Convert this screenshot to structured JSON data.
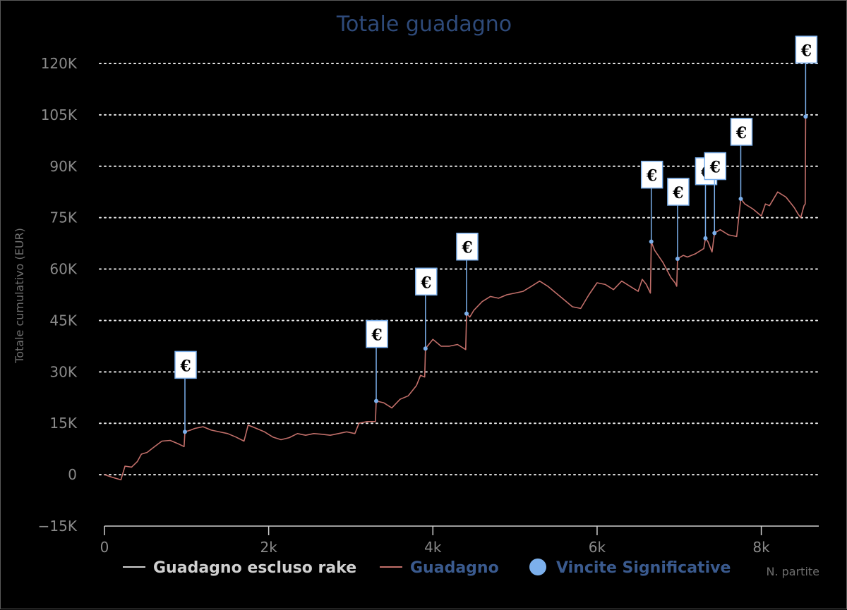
{
  "chart_data": {
    "type": "line",
    "title": "Totale guadagno",
    "xlabel": "N. partite",
    "ylabel": "Totale cumulativo (EUR)",
    "xlim": [
      0,
      8700
    ],
    "ylim": [
      -15000,
      120000
    ],
    "x_ticks": [
      {
        "value": 0,
        "label": "0"
      },
      {
        "value": 2000,
        "label": "2k"
      },
      {
        "value": 4000,
        "label": "4k"
      },
      {
        "value": 6000,
        "label": "6k"
      },
      {
        "value": 8000,
        "label": "8k"
      }
    ],
    "y_ticks": [
      {
        "value": -15000,
        "label": "−15K"
      },
      {
        "value": 0,
        "label": "0"
      },
      {
        "value": 15000,
        "label": "15K"
      },
      {
        "value": 30000,
        "label": "30K"
      },
      {
        "value": 45000,
        "label": "45K"
      },
      {
        "value": 60000,
        "label": "60K"
      },
      {
        "value": 75000,
        "label": "75K"
      },
      {
        "value": 90000,
        "label": "90K"
      },
      {
        "value": 105000,
        "label": "105K"
      },
      {
        "value": 120000,
        "label": "120K"
      }
    ],
    "grid": "horizontal-dotted",
    "legend_position": "bottom",
    "colors": {
      "excl_rake": "#d0d0d0",
      "guadagno": "#c26f6a",
      "vincite": "#7cb0ec",
      "title": "#2e4a7a"
    },
    "series": [
      {
        "name": "Guadagno escluso rake",
        "points": []
      },
      {
        "name": "Guadagno",
        "points": [
          [
            0,
            0
          ],
          [
            100,
            -800
          ],
          [
            200,
            -1500
          ],
          [
            250,
            2500
          ],
          [
            330,
            2200
          ],
          [
            400,
            3800
          ],
          [
            450,
            6000
          ],
          [
            520,
            6500
          ],
          [
            600,
            8000
          ],
          [
            700,
            9800
          ],
          [
            800,
            10000
          ],
          [
            900,
            9000
          ],
          [
            970,
            8200
          ],
          [
            980,
            12500
          ],
          [
            1050,
            13000
          ],
          [
            1100,
            13500
          ],
          [
            1200,
            14000
          ],
          [
            1300,
            13000
          ],
          [
            1400,
            12500
          ],
          [
            1500,
            12000
          ],
          [
            1600,
            11000
          ],
          [
            1700,
            9800
          ],
          [
            1750,
            14500
          ],
          [
            1850,
            13500
          ],
          [
            1950,
            12500
          ],
          [
            2050,
            11000
          ],
          [
            2150,
            10200
          ],
          [
            2250,
            10800
          ],
          [
            2350,
            12000
          ],
          [
            2450,
            11500
          ],
          [
            2550,
            12000
          ],
          [
            2650,
            11800
          ],
          [
            2750,
            11500
          ],
          [
            2850,
            12000
          ],
          [
            2950,
            12500
          ],
          [
            3050,
            12000
          ],
          [
            3100,
            15000
          ],
          [
            3200,
            15500
          ],
          [
            3300,
            15500
          ],
          [
            3310,
            21500
          ],
          [
            3400,
            21000
          ],
          [
            3500,
            19500
          ],
          [
            3600,
            22000
          ],
          [
            3700,
            23000
          ],
          [
            3800,
            26000
          ],
          [
            3850,
            29000
          ],
          [
            3900,
            28500
          ],
          [
            3910,
            36800
          ],
          [
            3950,
            38000
          ],
          [
            4000,
            39500
          ],
          [
            4100,
            37500
          ],
          [
            4200,
            37500
          ],
          [
            4300,
            38000
          ],
          [
            4400,
            36500
          ],
          [
            4410,
            47000
          ],
          [
            4450,
            46000
          ],
          [
            4500,
            48000
          ],
          [
            4600,
            50500
          ],
          [
            4700,
            52000
          ],
          [
            4800,
            51500
          ],
          [
            4900,
            52500
          ],
          [
            5000,
            53000
          ],
          [
            5100,
            53500
          ],
          [
            5200,
            55000
          ],
          [
            5300,
            56500
          ],
          [
            5400,
            55000
          ],
          [
            5500,
            53000
          ],
          [
            5600,
            51000
          ],
          [
            5700,
            49000
          ],
          [
            5800,
            48500
          ],
          [
            5900,
            52500
          ],
          [
            6000,
            56000
          ],
          [
            6100,
            55500
          ],
          [
            6200,
            54000
          ],
          [
            6300,
            56500
          ],
          [
            6400,
            55000
          ],
          [
            6500,
            53500
          ],
          [
            6550,
            57000
          ],
          [
            6600,
            55500
          ],
          [
            6650,
            53000
          ],
          [
            6660,
            68000
          ],
          [
            6700,
            65500
          ],
          [
            6800,
            62000
          ],
          [
            6900,
            57500
          ],
          [
            6950,
            56000
          ],
          [
            6970,
            55000
          ],
          [
            6980,
            63000
          ],
          [
            7050,
            64000
          ],
          [
            7100,
            63500
          ],
          [
            7200,
            64500
          ],
          [
            7300,
            66000
          ],
          [
            7320,
            69000
          ],
          [
            7350,
            68000
          ],
          [
            7400,
            65000
          ],
          [
            7430,
            70500
          ],
          [
            7500,
            71500
          ],
          [
            7600,
            70000
          ],
          [
            7700,
            69500
          ],
          [
            7750,
            80500
          ],
          [
            7800,
            79000
          ],
          [
            7900,
            77500
          ],
          [
            8000,
            75500
          ],
          [
            8050,
            79000
          ],
          [
            8100,
            78500
          ],
          [
            8200,
            82500
          ],
          [
            8300,
            81000
          ],
          [
            8350,
            79500
          ],
          [
            8400,
            78000
          ],
          [
            8450,
            76000
          ],
          [
            8480,
            75000
          ],
          [
            8520,
            78500
          ],
          [
            8535,
            79000
          ],
          [
            8540,
            104500
          ]
        ]
      },
      {
        "name": "Vincite Significative",
        "points": [
          [
            980,
            12500
          ],
          [
            3310,
            21500
          ],
          [
            3910,
            36800
          ],
          [
            4410,
            47000
          ],
          [
            6660,
            68000
          ],
          [
            6980,
            63000
          ],
          [
            7320,
            69000
          ],
          [
            7430,
            70500
          ],
          [
            7750,
            80500
          ],
          [
            8540,
            104500
          ]
        ],
        "marker_label": "€"
      }
    ]
  }
}
